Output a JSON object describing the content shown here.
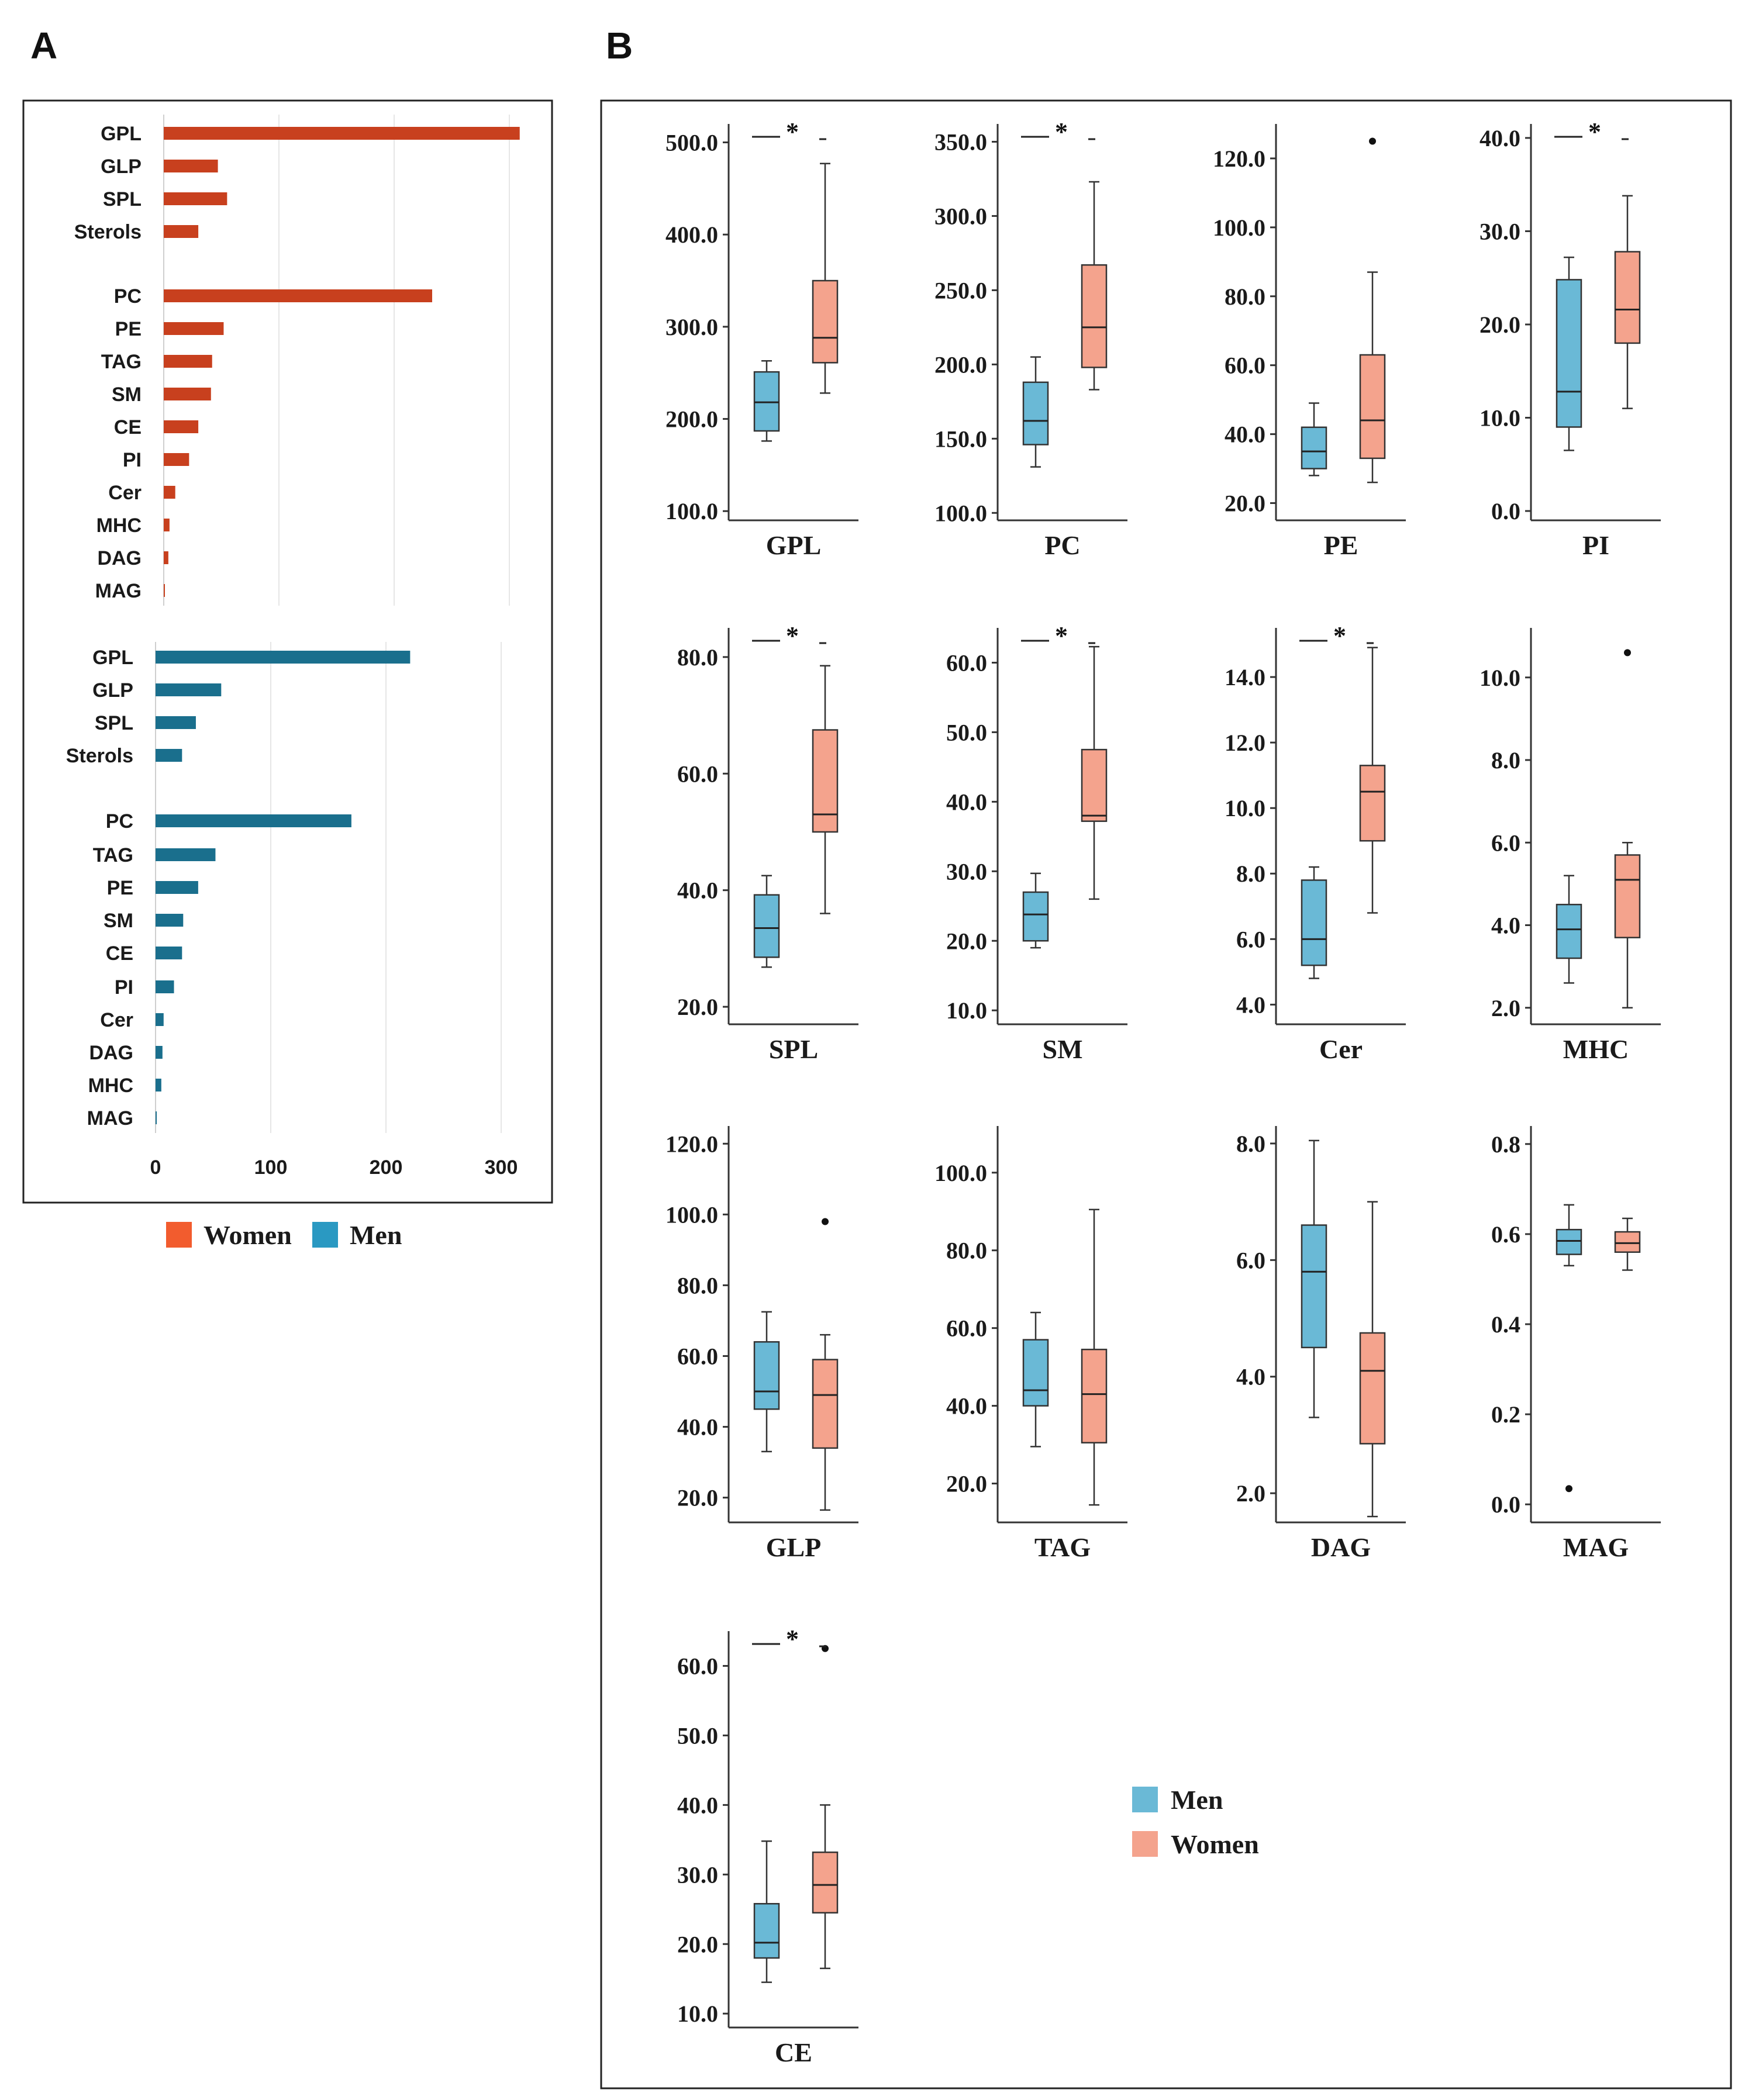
{
  "panel_labels": {
    "a": "A",
    "b": "B"
  },
  "colors": {
    "women_bar": "#c8401e",
    "men_bar": "#1a6f8d",
    "women_box": "#f4a38d",
    "men_box": "#6ab9d6",
    "women_legend_a": "#f25c2e",
    "men_legend_a": "#2a99c2"
  },
  "legend_a": {
    "women": "Women",
    "men": "Men"
  },
  "legend_b": {
    "men": "Men",
    "women": "Women"
  },
  "chart_data": [
    {
      "type": "bar",
      "orientation": "horizontal",
      "panel": "A",
      "group": "Women",
      "categories": [
        "GPL",
        "GLP",
        "SPL",
        "Sterols",
        "PC",
        "PE",
        "TAG",
        "SM",
        "CE",
        "PI",
        "Cer",
        "MHC",
        "DAG",
        "MAG"
      ],
      "values": [
        309,
        47,
        55,
        30,
        233,
        52,
        42,
        41,
        30,
        22,
        10,
        5,
        4,
        1
      ],
      "xlim": [
        0,
        320
      ]
    },
    {
      "type": "bar",
      "orientation": "horizontal",
      "panel": "A",
      "group": "Men",
      "categories": [
        "GPL",
        "GLP",
        "SPL",
        "Sterols",
        "PC",
        "TAG",
        "PE",
        "SM",
        "CE",
        "PI",
        "Cer",
        "DAG",
        "MHC",
        "MAG"
      ],
      "values": [
        221,
        57,
        35,
        23,
        170,
        52,
        37,
        24,
        23,
        16,
        7,
        6,
        5,
        1
      ],
      "xlim": [
        0,
        320
      ],
      "xticks": [
        "0",
        "100",
        "200",
        "300"
      ]
    },
    {
      "type": "box",
      "panel": "B",
      "title": "GPL",
      "ylim": [
        90,
        520
      ],
      "yticks": [
        100,
        200,
        300,
        400,
        500
      ],
      "ytick_labels": [
        "100.0",
        "200.0",
        "300.0",
        "400.0",
        "500.0"
      ],
      "significance": "*",
      "men": {
        "min": 176,
        "q1": 187,
        "median": 218,
        "q3": 251,
        "max": 263,
        "outliers": []
      },
      "women": {
        "min": 228,
        "q1": 261,
        "median": 288,
        "q3": 350,
        "max": 477,
        "outliers": []
      }
    },
    {
      "type": "box",
      "panel": "B",
      "title": "PC",
      "ylim": [
        95,
        362
      ],
      "yticks": [
        100,
        150,
        200,
        250,
        300,
        350
      ],
      "ytick_labels": [
        "100.0",
        "150.0",
        "200.0",
        "250.0",
        "300.0",
        "350.0"
      ],
      "significance": "*",
      "men": {
        "min": 131,
        "q1": 146,
        "median": 162,
        "q3": 188,
        "max": 205,
        "outliers": []
      },
      "women": {
        "min": 183,
        "q1": 198,
        "median": 225,
        "q3": 267,
        "max": 323,
        "outliers": []
      }
    },
    {
      "type": "box",
      "panel": "B",
      "title": "PE",
      "ylim": [
        15,
        130
      ],
      "yticks": [
        20,
        40,
        60,
        80,
        100,
        120
      ],
      "ytick_labels": [
        "20.0",
        "40.0",
        "60.0",
        "80.0",
        "100.0",
        "120.0"
      ],
      "significance": "",
      "men": {
        "min": 28,
        "q1": 30,
        "median": 35,
        "q3": 42,
        "max": 49,
        "outliers": []
      },
      "women": {
        "min": 26,
        "q1": 33,
        "median": 44,
        "q3": 63,
        "max": 87,
        "outliers": [
          125
        ]
      }
    },
    {
      "type": "box",
      "panel": "B",
      "title": "PI",
      "ylim": [
        -1,
        41.5
      ],
      "yticks": [
        0,
        10,
        20,
        30,
        40
      ],
      "ytick_labels": [
        "0.0",
        "10.0",
        "20.0",
        "30.0",
        "40.0"
      ],
      "significance": "*",
      "men": {
        "min": 6.5,
        "q1": 9,
        "median": 12.8,
        "q3": 24.8,
        "max": 27.2,
        "outliers": []
      },
      "women": {
        "min": 11,
        "q1": 18,
        "median": 21.6,
        "q3": 27.8,
        "max": 33.8,
        "outliers": []
      }
    },
    {
      "type": "box",
      "panel": "B",
      "title": "SPL",
      "ylim": [
        17,
        85
      ],
      "yticks": [
        20,
        40,
        60,
        80
      ],
      "ytick_labels": [
        "20.0",
        "40.0",
        "60.0",
        "80.0"
      ],
      "significance": "*",
      "men": {
        "min": 26.8,
        "q1": 28.5,
        "median": 33.5,
        "q3": 39.2,
        "max": 42.5,
        "outliers": []
      },
      "women": {
        "min": 36,
        "q1": 50,
        "median": 53,
        "q3": 67.5,
        "max": 78.5,
        "outliers": []
      }
    },
    {
      "type": "box",
      "panel": "B",
      "title": "SM",
      "ylim": [
        8,
        65
      ],
      "yticks": [
        10,
        20,
        30,
        40,
        50,
        60
      ],
      "ytick_labels": [
        "10.0",
        "20.0",
        "30.0",
        "40.0",
        "50.0",
        "60.0"
      ],
      "significance": "*",
      "men": {
        "min": 19,
        "q1": 20,
        "median": 23.8,
        "q3": 27,
        "max": 29.7,
        "outliers": []
      },
      "women": {
        "min": 26,
        "q1": 37.2,
        "median": 38,
        "q3": 47.5,
        "max": 62.3,
        "outliers": []
      }
    },
    {
      "type": "box",
      "panel": "B",
      "title": "Cer",
      "ylim": [
        3.4,
        15.5
      ],
      "yticks": [
        4,
        6,
        8,
        10,
        12,
        14
      ],
      "ytick_labels": [
        "4.0",
        "6.0",
        "8.0",
        "10.0",
        "12.0",
        "14.0"
      ],
      "significance": "*",
      "men": {
        "min": 4.8,
        "q1": 5.2,
        "median": 6,
        "q3": 7.8,
        "max": 8.2,
        "outliers": []
      },
      "women": {
        "min": 6.8,
        "q1": 9,
        "median": 10.5,
        "q3": 11.3,
        "max": 14.9,
        "outliers": []
      }
    },
    {
      "type": "box",
      "panel": "B",
      "title": "MHC",
      "ylim": [
        1.6,
        11.2
      ],
      "yticks": [
        2,
        4,
        6,
        8,
        10
      ],
      "ytick_labels": [
        "2.0",
        "4.0",
        "6.0",
        "8.0",
        "10.0"
      ],
      "significance": "",
      "men": {
        "min": 2.6,
        "q1": 3.2,
        "median": 3.9,
        "q3": 4.5,
        "max": 5.2,
        "outliers": []
      },
      "women": {
        "min": 2.0,
        "q1": 3.7,
        "median": 5.1,
        "q3": 5.7,
        "max": 6.0,
        "outliers": [
          10.6
        ]
      }
    },
    {
      "type": "box",
      "panel": "B",
      "title": "GLP",
      "ylim": [
        13,
        125
      ],
      "yticks": [
        20,
        40,
        60,
        80,
        100,
        120
      ],
      "ytick_labels": [
        "20.0",
        "40.0",
        "60.0",
        "80.0",
        "100.0",
        "120.0"
      ],
      "significance": "",
      "men": {
        "min": 33,
        "q1": 45,
        "median": 50,
        "q3": 64,
        "max": 72.5,
        "outliers": []
      },
      "women": {
        "min": 16.5,
        "q1": 34,
        "median": 49,
        "q3": 59,
        "max": 66,
        "outliers": [
          98
        ]
      }
    },
    {
      "type": "box",
      "panel": "B",
      "title": "TAG",
      "ylim": [
        10,
        112
      ],
      "yticks": [
        20,
        40,
        60,
        80,
        100
      ],
      "ytick_labels": [
        "20.0",
        "40.0",
        "60.0",
        "80.0",
        "100.0"
      ],
      "significance": "",
      "men": {
        "min": 29.5,
        "q1": 40,
        "median": 44,
        "q3": 57,
        "max": 64,
        "outliers": []
      },
      "women": {
        "min": 14.5,
        "q1": 30.5,
        "median": 43,
        "q3": 54.5,
        "max": 90.5,
        "outliers": []
      }
    },
    {
      "type": "box",
      "panel": "B",
      "title": "DAG",
      "ylim": [
        1.5,
        8.3
      ],
      "yticks": [
        2,
        4,
        6,
        8
      ],
      "ytick_labels": [
        "2.0",
        "4.0",
        "6.0",
        "8.0"
      ],
      "significance": "",
      "men": {
        "min": 3.3,
        "q1": 4.5,
        "median": 5.8,
        "q3": 6.6,
        "max": 8.05,
        "outliers": []
      },
      "women": {
        "min": 1.6,
        "q1": 2.85,
        "median": 4.1,
        "q3": 4.75,
        "max": 7.0,
        "outliers": []
      }
    },
    {
      "type": "box",
      "panel": "B",
      "title": "MAG",
      "ylim": [
        -0.04,
        0.84
      ],
      "yticks": [
        0,
        0.2,
        0.4,
        0.6,
        0.8
      ],
      "ytick_labels": [
        "0.0",
        "0.2",
        "0.4",
        "0.6",
        "0.8"
      ],
      "significance": "",
      "men": {
        "min": 0.53,
        "q1": 0.555,
        "median": 0.585,
        "q3": 0.61,
        "max": 0.665,
        "outliers": [
          0.035
        ]
      },
      "women": {
        "min": 0.52,
        "q1": 0.56,
        "median": 0.58,
        "q3": 0.605,
        "max": 0.635,
        "outliers": []
      }
    },
    {
      "type": "box",
      "panel": "B",
      "title": "CE",
      "ylim": [
        8,
        65
      ],
      "yticks": [
        10,
        20,
        30,
        40,
        50,
        60
      ],
      "ytick_labels": [
        "10.0",
        "20.0",
        "30.0",
        "40.0",
        "50.0",
        "60.0"
      ],
      "significance": "*",
      "men": {
        "min": 14.5,
        "q1": 18,
        "median": 20.2,
        "q3": 25.8,
        "max": 34.8,
        "outliers": []
      },
      "women": {
        "min": 16.5,
        "q1": 24.5,
        "median": 28.5,
        "q3": 33.2,
        "max": 40,
        "outliers": [
          62.5
        ]
      }
    }
  ]
}
